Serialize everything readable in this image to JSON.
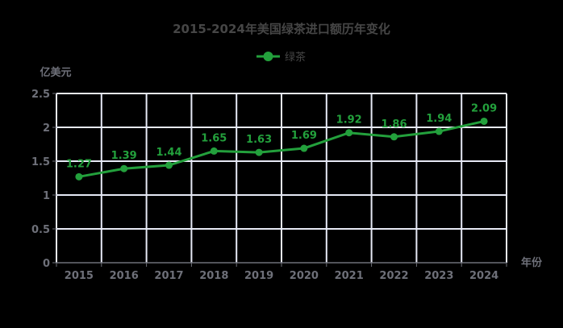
{
  "chart": {
    "title": "2015-2024年美国绿茶进口额历年变化",
    "legend": [
      {
        "name": "绿茶",
        "color": "#23a03c"
      }
    ],
    "y_axis_name": "亿美元",
    "x_axis_name": "年份"
  },
  "colors": {
    "series": "#23a03c",
    "grid": "#e6e9f5",
    "axis": "#6e7079",
    "title": "#464646",
    "background": "#000000"
  },
  "chart_data": {
    "type": "line",
    "title": "2015-2024年美国绿茶进口额历年变化",
    "xlabel": "年份",
    "ylabel": "亿美元",
    "categories": [
      "2015",
      "2016",
      "2017",
      "2018",
      "2019",
      "2020",
      "2021",
      "2022",
      "2023",
      "2024"
    ],
    "series": [
      {
        "name": "绿茶",
        "values": [
          1.27,
          1.39,
          1.44,
          1.65,
          1.63,
          1.69,
          1.92,
          1.86,
          1.94,
          2.09
        ]
      }
    ],
    "ylim": [
      0,
      2.5
    ],
    "yticks": [
      "0",
      "0.5",
      "1",
      "1.5",
      "2",
      "2.5"
    ],
    "grid": true,
    "legend_position": "top-center",
    "data_labels": true
  }
}
